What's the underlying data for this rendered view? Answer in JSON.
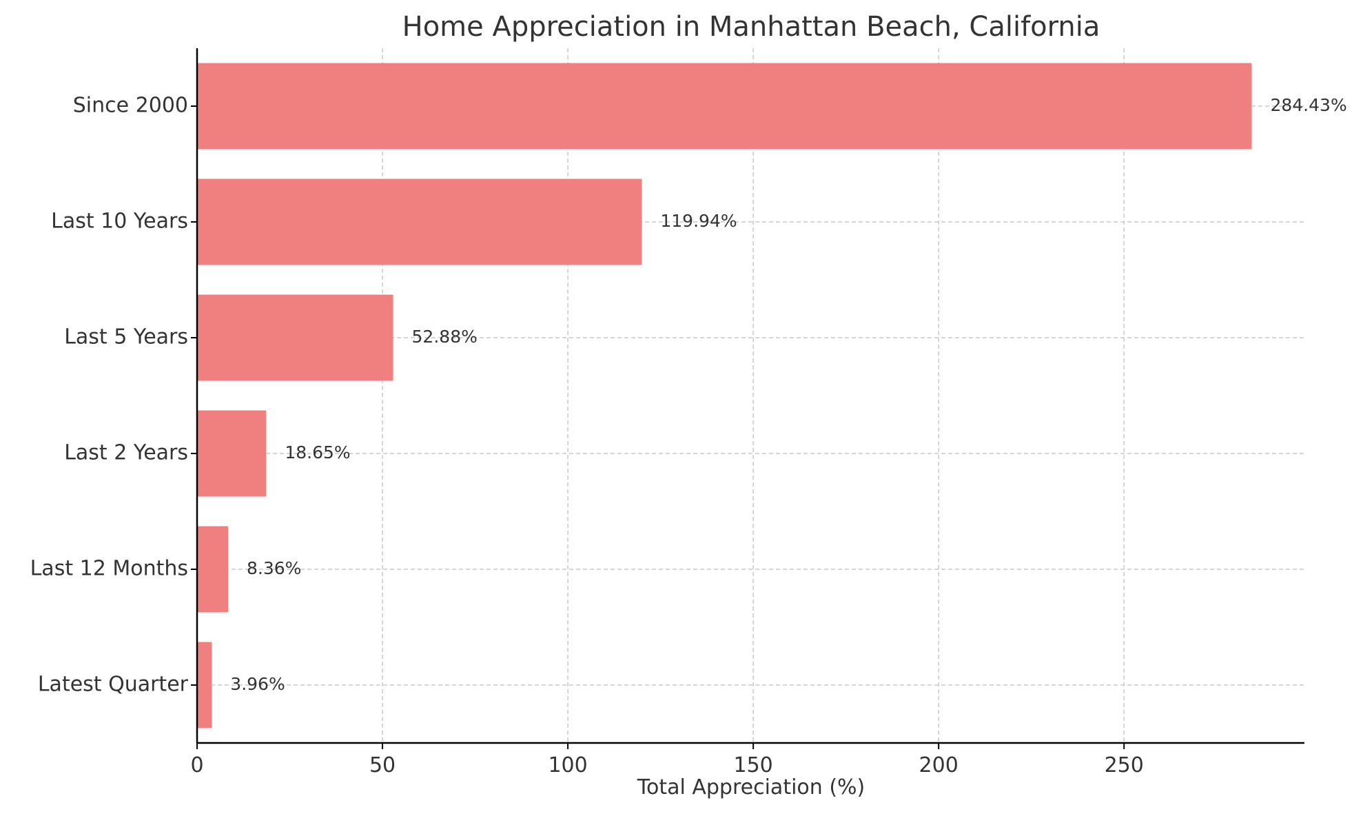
{
  "chart_data": {
    "type": "bar",
    "orientation": "horizontal",
    "title": "Home Appreciation in Manhattan Beach, California",
    "xlabel": "Total Appreciation (%)",
    "ylabel": "",
    "categories": [
      "Since 2000",
      "Last 10 Years",
      "Last 5 Years",
      "Last 2 Years",
      "Last 12 Months",
      "Latest Quarter"
    ],
    "values": [
      284.43,
      119.94,
      52.88,
      18.65,
      8.36,
      3.96
    ],
    "value_labels": [
      "284.43%",
      "119.94%",
      "52.88%",
      "18.65%",
      "8.36%",
      "3.96%"
    ],
    "xlim": [
      0,
      298.65
    ],
    "xticks": [
      0,
      50,
      100,
      150,
      200,
      250
    ],
    "xtick_labels": [
      "0",
      "50",
      "100",
      "150",
      "200",
      "250"
    ],
    "grid": true,
    "grid_style": "dashed",
    "legend": "none",
    "colors": {
      "bar": "#f08080",
      "text": "#333333",
      "axis": "#000000",
      "grid": "#c8c8c8"
    }
  }
}
